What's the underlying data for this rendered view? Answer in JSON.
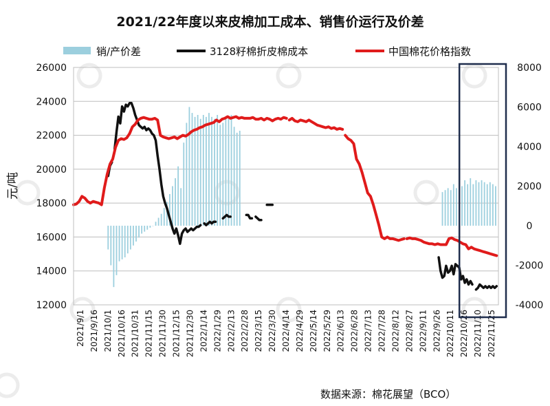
{
  "chart_data": {
    "type": "line",
    "title": "2021/22年度以来皮棉加工成本、销售价运行及价差",
    "ylabel": "元/吨",
    "source": "数据来源：棉花展望（BCO）",
    "ylim": [
      12000,
      26000
    ],
    "yticks": [
      26000,
      24000,
      22000,
      20000,
      18000,
      16000,
      14000,
      12000
    ],
    "y2lim": [
      -4000,
      8000
    ],
    "y2ticks": [
      8000,
      6000,
      4000,
      2000,
      0,
      -2000,
      -4000
    ],
    "grid": true,
    "legend_position": "top",
    "highlight_box": {
      "from": "2022/10/26",
      "to": "2022/11/30",
      "color": "#1f2d4d"
    },
    "categories": [
      "2021/9/1",
      "2021/9/16",
      "2021/10/1",
      "2021/10/16",
      "2021/10/31",
      "2021/11/15",
      "2021/11/30",
      "2021/12/15",
      "2021/12/30",
      "2022/1/14",
      "2022/1/29",
      "2022/2/13",
      "2022/2/28",
      "2022/3/15",
      "2022/3/30",
      "2022/4/14",
      "2022/4/29",
      "2022/5/14",
      "2022/5/29",
      "2022/6/13",
      "2022/6/28",
      "2022/7/13",
      "2022/7/28",
      "2022/8/12",
      "2022/8/27",
      "2022/9/11",
      "2022/9/26",
      "2022/10/11",
      "2022/10/26",
      "2022/11/10",
      "2022/11/25"
    ],
    "series": [
      {
        "name": "销/产价差",
        "type": "bar",
        "axis": "right",
        "color": "#9ccfde",
        "segments": [
          {
            "x": [
              37,
              40,
              43,
              46,
              49,
              52,
              55,
              58,
              61,
              64,
              67,
              70,
              73,
              76,
              79,
              82,
              85,
              88,
              91,
              94,
              97,
              100,
              103,
              106,
              109,
              112,
              115,
              118,
              121,
              124,
              127,
              130,
              133,
              136,
              139,
              142,
              145,
              148,
              151,
              154,
              157,
              160,
              163,
              166,
              169,
              172,
              175,
              178
            ],
            "y": [
              -1200,
              -2000,
              -3100,
              -2500,
              -1800,
              -1700,
              -1600,
              -1400,
              -1200,
              -1000,
              -800,
              -600,
              -400,
              -300,
              -200,
              -100,
              0,
              200,
              400,
              600,
              900,
              1200,
              1600,
              2000,
              2400,
              3000,
              1900,
              4200,
              5200,
              6000,
              5700,
              5500,
              5600,
              5400,
              5600,
              5500,
              5700,
              5500,
              5400,
              5600,
              5100,
              5200,
              5500,
              5400,
              5600,
              5000,
              4700,
              4800
            ]
          },
          {
            "x": [
              395,
              398,
              401,
              404,
              407,
              410,
              413,
              416,
              419,
              422,
              425,
              428,
              431,
              434,
              437,
              440,
              443,
              446,
              449,
              452
            ],
            "y": [
              1700,
              1800,
              1900,
              1800,
              2100,
              1900,
              2200,
              2000,
              2300,
              2100,
              2400,
              2100,
              2300,
              2200,
              2300,
              2200,
              2100,
              2200,
              2100,
              2000
            ]
          }
        ]
      },
      {
        "name": "3128籽棉折皮棉成本",
        "type": "line",
        "axis": "left",
        "color": "#111111",
        "segments": [
          {
            "x": [
              37,
              38,
              39,
              40,
              41
            ],
            "y": [
              19600,
              19900,
              20200,
              20300,
              20400
            ]
          },
          {
            "x": [
              44,
              46,
              48,
              50,
              52,
              54,
              56,
              58,
              60,
              62,
              64,
              66,
              68,
              70,
              72,
              74,
              76,
              78,
              80,
              82,
              84,
              86,
              88,
              90,
              92,
              94,
              96,
              98,
              100,
              102,
              104,
              106,
              108,
              110,
              112,
              114,
              116,
              118,
              120,
              122,
              124,
              126,
              128,
              130,
              132,
              134,
              136
            ],
            "y": [
              21200,
              22200,
              23100,
              22700,
              23700,
              23400,
              23800,
              23700,
              23900,
              23900,
              23600,
              23200,
              22900,
              22600,
              22500,
              22400,
              22500,
              22300,
              22400,
              22300,
              22100,
              22000,
              21700,
              20800,
              20000,
              19100,
              18400,
              18000,
              17700,
              17300,
              16900,
              16500,
              16200,
              16500,
              16100,
              15600,
              16200,
              16400,
              16500,
              16300,
              16400,
              16500,
              16400,
              16500,
              16600,
              16600,
              16700
            ]
          },
          {
            "x": [
              140,
              142,
              144,
              146,
              148,
              150,
              152
            ],
            "y": [
              16800,
              16700,
              16800,
              16900,
              16800,
              16900,
              16900
            ]
          },
          {
            "x": [
              160,
              162,
              164,
              166,
              168
            ],
            "y": [
              17100,
              17200,
              17300,
              17200,
              17200
            ]
          },
          {
            "x": [
              185,
              187,
              189,
              191
            ],
            "y": [
              17300,
              17300,
              17100,
              17100
            ]
          },
          {
            "x": [
              195,
              197,
              199,
              201
            ],
            "y": [
              17200,
              17100,
              17000,
              17000
            ]
          },
          {
            "x": [
              207,
              209,
              211,
              213
            ],
            "y": [
              17900,
              17900,
              17900,
              17900
            ]
          },
          {
            "x": [
              391,
              393,
              395,
              397,
              399,
              401,
              403,
              405,
              407,
              409,
              411,
              413,
              415,
              417,
              419,
              421,
              423,
              425,
              427
            ],
            "y": [
              14800,
              14000,
              13600,
              13700,
              14300,
              13900,
              14000,
              14300,
              13800,
              14400,
              14300,
              14200,
              13500,
              13700,
              13300,
              13500,
              13200,
              13400,
              13200
            ]
          },
          {
            "x": [
              431,
              433,
              435,
              437,
              439,
              441,
              443,
              445,
              447,
              449,
              451,
              453
            ],
            "y": [
              12900,
              13000,
              13200,
              13100,
              13000,
              13100,
              13000,
              13100,
              13000,
              13100,
              13000,
              13100
            ]
          }
        ]
      },
      {
        "name": "中国棉花价格指数",
        "type": "line",
        "axis": "left",
        "color": "#e01b1b",
        "segments": [
          {
            "x": [
              0,
              3,
              6,
              9,
              12,
              15,
              18,
              21,
              24,
              27,
              30,
              33,
              36,
              39,
              42,
              45,
              48,
              51,
              54,
              57,
              60,
              63,
              66,
              69,
              72,
              75,
              78,
              81,
              84,
              87,
              90,
              93,
              96,
              99,
              102,
              105,
              108,
              111,
              114,
              117,
              120,
              123,
              126,
              129,
              132,
              135,
              138,
              141,
              144,
              147,
              150,
              153,
              156,
              159,
              162,
              165,
              168,
              171,
              174,
              177,
              180,
              183,
              186,
              189,
              192,
              195,
              198,
              201,
              204,
              207,
              210,
              213,
              216,
              219,
              222,
              225,
              228
            ],
            "y": [
              17900,
              17950,
              18100,
              18400,
              18300,
              18100,
              18000,
              18100,
              18050,
              18000,
              17900,
              18900,
              19700,
              20300,
              20600,
              21300,
              21700,
              21800,
              21750,
              21850,
              22100,
              22500,
              22650,
              22900,
              23000,
              23050,
              23000,
              22950,
              22950,
              23000,
              22900,
              22000,
              21900,
              21850,
              21800,
              21850,
              21900,
              21800,
              21900,
              22000,
              21950,
              22050,
              22200,
              22300,
              22350,
              22450,
              22500,
              22600,
              22650,
              22700,
              22750,
              22900,
              22800,
              22950,
              23000,
              23100,
              23000,
              23050,
              23100,
              23000,
              23050,
              23000,
              23000,
              23000,
              23050,
              22950,
              22950,
              23000,
              22900,
              23000,
              22950,
              22850,
              22950,
              23000,
              22950,
              23050,
              23000
            ]
          },
          {
            "x": [
              231,
              234,
              237,
              240,
              243,
              246,
              249,
              252,
              255,
              258,
              261,
              264,
              267,
              270,
              273,
              276,
              279,
              282,
              285,
              288
            ],
            "y": [
              22900,
              23000,
              22850,
              22800,
              22900,
              22850,
              22800,
              22900,
              22800,
              22700,
              22600,
              22550,
              22500,
              22450,
              22500,
              22400,
              22450,
              22350,
              22400,
              22350
            ]
          },
          {
            "x": [
              291,
              294,
              297,
              300,
              303,
              306,
              309,
              312,
              315,
              318,
              321,
              324,
              327,
              330,
              333,
              336,
              339,
              342,
              345,
              348,
              351,
              354
            ],
            "y": [
              22000,
              21800,
              21700,
              21500,
              20600,
              20300,
              19800,
              19200,
              18600,
              18400,
              17900,
              17300,
              16700,
              16000,
              15900,
              16000,
              15900,
              15900,
              15850,
              15800,
              15850,
              15900
            ]
          },
          {
            "x": [
              357,
              360,
              363,
              366,
              369,
              372,
              375,
              378,
              381,
              384,
              387,
              390,
              393,
              396,
              399,
              402,
              405,
              408,
              411,
              414,
              417,
              420,
              423,
              426,
              429,
              432,
              435,
              438,
              441,
              444,
              447,
              450,
              453
            ],
            "y": [
              15900,
              15950,
              15900,
              15900,
              15850,
              15800,
              15700,
              15650,
              15600,
              15600,
              15550,
              15600,
              15550,
              15550,
              15550,
              15900,
              15950,
              15850,
              15800,
              15700,
              15600,
              15550,
              15300,
              15400,
              15300,
              15250,
              15200,
              15150,
              15100,
              15050,
              15000,
              14950,
              14900
            ]
          }
        ]
      }
    ]
  }
}
